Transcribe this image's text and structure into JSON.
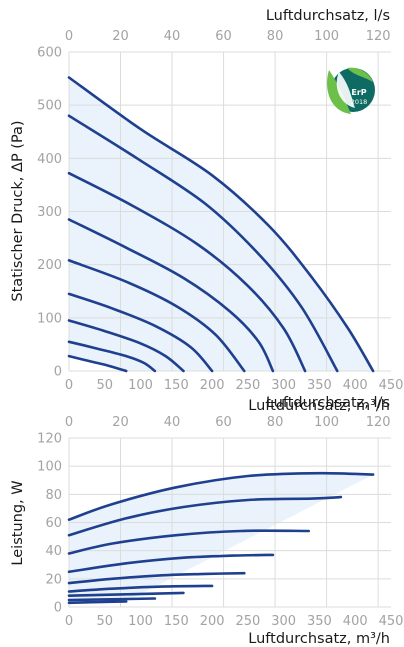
{
  "colors": {
    "curve": "#1f3f8f",
    "envelope_fill": "#eaf3fb",
    "grid": "#dcdcdc",
    "tick_text": "#a3a3a3",
    "erp_badge_dark": "#0e6b64",
    "erp_badge_light": "#6cc04a"
  },
  "badge": {
    "icon": "erp-2018-leaf-badge-icon",
    "text": "ErP",
    "year": "2018"
  },
  "chart_data": [
    {
      "type": "line",
      "title": "",
      "xlabel": "Luftdurchsatz, m³/h",
      "x2label": "Luftdurchsatz, l/s",
      "ylabel": "Statischer Druck, ΔP (Pa)",
      "xlim": [
        0,
        450
      ],
      "ylim": [
        0,
        600
      ],
      "x2lim": [
        0,
        125
      ],
      "xticks": [
        "0",
        "50",
        "100",
        "150",
        "200",
        "250",
        "300",
        "350",
        "400",
        "450"
      ],
      "x2ticks": [
        "0",
        "20",
        "40",
        "60",
        "80",
        "100",
        "120"
      ],
      "yticks": [
        "0",
        "100",
        "200",
        "300",
        "400",
        "500",
        "600"
      ],
      "grid": true,
      "envelope_shaded": true,
      "series": [
        {
          "x": [
            0,
            30,
            55,
            80
          ],
          "y": [
            28,
            18,
            10,
            0
          ]
        },
        {
          "x": [
            0,
            40,
            80,
            105,
            120
          ],
          "y": [
            55,
            42,
            28,
            15,
            0
          ]
        },
        {
          "x": [
            0,
            50,
            100,
            135,
            160
          ],
          "y": [
            95,
            75,
            52,
            28,
            0
          ]
        },
        {
          "x": [
            0,
            60,
            120,
            170,
            200
          ],
          "y": [
            145,
            118,
            85,
            45,
            0
          ]
        },
        {
          "x": [
            0,
            80,
            150,
            205,
            245
          ],
          "y": [
            208,
            168,
            122,
            68,
            0
          ]
        },
        {
          "x": [
            0,
            80,
            160,
            225,
            265,
            285
          ],
          "y": [
            285,
            232,
            175,
            112,
            55,
            0
          ]
        },
        {
          "x": [
            0,
            90,
            180,
            250,
            300,
            330
          ],
          "y": [
            372,
            310,
            238,
            160,
            80,
            0
          ]
        },
        {
          "x": [
            0,
            95,
            190,
            265,
            325,
            375
          ],
          "y": [
            480,
            400,
            315,
            220,
            120,
            0
          ]
        },
        {
          "x": [
            0,
            100,
            200,
            280,
            340,
            390,
            425
          ],
          "y": [
            552,
            455,
            368,
            272,
            175,
            80,
            0
          ]
        }
      ]
    },
    {
      "type": "line",
      "title": "",
      "xlabel": "Luftdurchsatz, m³/h",
      "x2label": "Luftdurchsatz, l/s",
      "ylabel": "Leistung, W",
      "xlim": [
        0,
        450
      ],
      "ylim": [
        0,
        120
      ],
      "x2lim": [
        0,
        125
      ],
      "xticks": [
        "0",
        "50",
        "100",
        "150",
        "200",
        "250",
        "300",
        "350",
        "400",
        "450"
      ],
      "x2ticks": [
        "0",
        "20",
        "40",
        "60",
        "80",
        "100",
        "120"
      ],
      "yticks": [
        "0",
        "20",
        "40",
        "60",
        "80",
        "100",
        "120"
      ],
      "grid": true,
      "envelope_shaded": true,
      "series": [
        {
          "x": [
            0,
            40,
            80
          ],
          "y": [
            3,
            3.5,
            4
          ]
        },
        {
          "x": [
            0,
            60,
            120
          ],
          "y": [
            5,
            5.5,
            6
          ]
        },
        {
          "x": [
            0,
            80,
            160
          ],
          "y": [
            8,
            9,
            10
          ]
        },
        {
          "x": [
            0,
            60,
            130,
            200
          ],
          "y": [
            11,
            13,
            14.5,
            15
          ]
        },
        {
          "x": [
            0,
            60,
            130,
            190,
            245
          ],
          "y": [
            17,
            20,
            22.5,
            23.5,
            24
          ]
        },
        {
          "x": [
            0,
            80,
            160,
            230,
            285
          ],
          "y": [
            25,
            31,
            35,
            36.5,
            37
          ]
        },
        {
          "x": [
            0,
            60,
            150,
            240,
            335
          ],
          "y": [
            38,
            45,
            51,
            54,
            54
          ]
        },
        {
          "x": [
            0,
            80,
            160,
            250,
            340,
            380
          ],
          "y": [
            51,
            63,
            71,
            76,
            77,
            78
          ]
        },
        {
          "x": [
            0,
            60,
            150,
            250,
            350,
            425
          ],
          "y": [
            62,
            73,
            85,
            93,
            95,
            94
          ]
        }
      ]
    }
  ]
}
